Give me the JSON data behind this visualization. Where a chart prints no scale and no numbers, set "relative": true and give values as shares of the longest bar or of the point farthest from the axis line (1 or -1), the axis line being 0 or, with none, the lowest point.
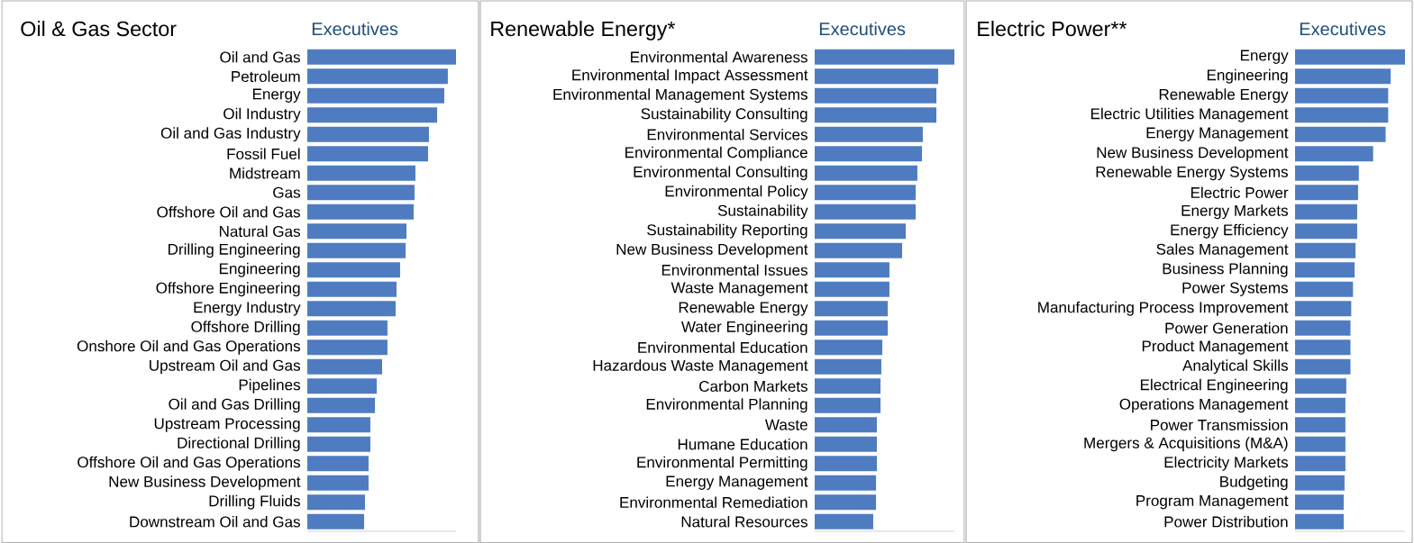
{
  "chart_data": [
    {
      "type": "bar",
      "orientation": "horizontal",
      "relative": true,
      "title": "Oil & Gas Sector",
      "subtitle": "Executives",
      "color": "#4f7cc0",
      "categories": [
        "Oil and Gas",
        "Petroleum",
        "Energy",
        "Oil Industry",
        "Oil and Gas Industry",
        "Fossil Fuel",
        "Midstream",
        "Gas",
        "Offshore Oil and Gas",
        "Natural Gas",
        "Drilling Engineering",
        "Engineering",
        "Offshore Engineering",
        "Energy Industry",
        "Offshore Drilling",
        "Onshore Oil and Gas Operations",
        "Upstream Oil and Gas",
        "Pipelines",
        "Oil and Gas Drilling",
        "Upstream Processing",
        "Directional Drilling",
        "Offshore Oil and Gas Operations",
        "New Business Development",
        "Drilling Fluids",
        "Downstream Oil and Gas"
      ],
      "values": [
        1,
        0.945,
        0.921,
        0.873,
        0.818,
        0.812,
        0.727,
        0.721,
        0.715,
        0.667,
        0.661,
        0.624,
        0.6,
        0.594,
        0.539,
        0.539,
        0.503,
        0.467,
        0.455,
        0.424,
        0.424,
        0.412,
        0.412,
        0.388,
        0.382
      ]
    },
    {
      "type": "bar",
      "orientation": "horizontal",
      "relative": true,
      "title": "Renewable Energy*",
      "subtitle": "Executives",
      "color": "#4f7cc0",
      "categories": [
        "Environmental Awareness",
        "Environmental Impact Assessment",
        "Environmental Management Systems",
        "Sustainability Consulting",
        "Environmental Services",
        "Environmental Compliance",
        "Environmental Consulting",
        "Environmental Policy",
        "Sustainability",
        "Sustainability Reporting",
        "New Business Development",
        "Environmental Issues",
        "Waste Management",
        "Renewable Energy",
        "Water Engineering",
        "Environmental Education",
        "Hazardous Waste Management",
        "Carbon Markets",
        "Environmental Planning",
        "Waste",
        "Humane Education",
        "Environmental Permitting",
        "Energy Management",
        "Environmental Remediation",
        "Natural Resources"
      ],
      "values": [
        1,
        0.884,
        0.871,
        0.871,
        0.774,
        0.768,
        0.735,
        0.723,
        0.723,
        0.652,
        0.626,
        0.535,
        0.535,
        0.523,
        0.523,
        0.484,
        0.477,
        0.471,
        0.471,
        0.445,
        0.445,
        0.445,
        0.439,
        0.439,
        0.419
      ]
    },
    {
      "type": "bar",
      "orientation": "horizontal",
      "relative": true,
      "title": "Electric Power**",
      "subtitle": "Executives",
      "color": "#4f7cc0",
      "categories": [
        "Energy",
        "Engineering",
        "Renewable Energy",
        "Electric Utilities Management",
        "Energy Management",
        "New Business Development",
        "Renewable Energy Systems",
        "Electric Power",
        "Energy Markets",
        "Energy Efficiency",
        "Sales Management",
        "Business Planning",
        "Power Systems",
        "Manufacturing Process Improvement",
        "Power Generation",
        "Product Management",
        "Analytical Skills",
        "Electrical Engineering",
        "Operations Management",
        "Power Transmission",
        "Mergers & Acquisitions (M&A)",
        "Electricity Markets",
        "Budgeting",
        "Program Management",
        "Power Distribution"
      ],
      "values": [
        1,
        0.87,
        0.847,
        0.847,
        0.824,
        0.71,
        0.58,
        0.573,
        0.565,
        0.565,
        0.55,
        0.542,
        0.527,
        0.511,
        0.504,
        0.504,
        0.504,
        0.466,
        0.458,
        0.458,
        0.458,
        0.458,
        0.45,
        0.443,
        0.443
      ]
    }
  ]
}
